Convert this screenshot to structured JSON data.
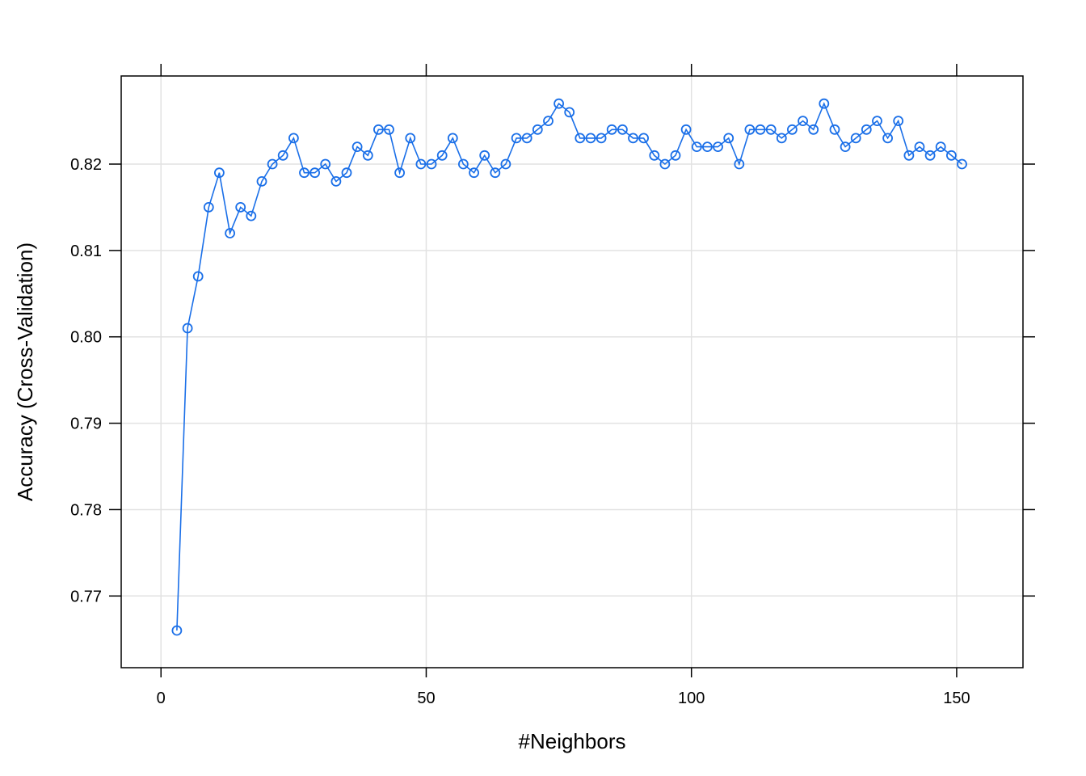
{
  "chart_data": {
    "type": "line",
    "title": "",
    "xlabel": "#Neighbors",
    "ylabel": "Accuracy (Cross-Validation)",
    "xlim": [
      -7.5,
      162.5
    ],
    "ylim": [
      0.7617,
      0.8302
    ],
    "x_ticks": [
      0,
      50,
      100,
      150
    ],
    "x_tick_labels": [
      "0",
      "50",
      "100",
      "150"
    ],
    "y_ticks": [
      0.77,
      0.78,
      0.79,
      0.8,
      0.81,
      0.82
    ],
    "y_tick_labels": [
      "0.77",
      "0.78",
      "0.79",
      "0.80",
      "0.81",
      "0.82"
    ],
    "grid": true,
    "marker": "open-circle",
    "series_color": "#1a6fe8",
    "grid_color": "#e2e2e2",
    "x": [
      3,
      5,
      7,
      9,
      11,
      13,
      15,
      17,
      19,
      21,
      23,
      25,
      27,
      29,
      31,
      33,
      35,
      37,
      39,
      41,
      43,
      45,
      47,
      49,
      51,
      53,
      55,
      57,
      59,
      61,
      63,
      65,
      67,
      69,
      71,
      73,
      75,
      77,
      79,
      81,
      83,
      85,
      87,
      89,
      91,
      93,
      95,
      97,
      99,
      101,
      103,
      105,
      107,
      109,
      111,
      113,
      115,
      117,
      119,
      121,
      123,
      125,
      127,
      129,
      131,
      133,
      135,
      137,
      139,
      141,
      143,
      145,
      147,
      149,
      151
    ],
    "y": [
      0.766,
      0.801,
      0.807,
      0.815,
      0.819,
      0.812,
      0.815,
      0.814,
      0.818,
      0.82,
      0.821,
      0.823,
      0.819,
      0.819,
      0.82,
      0.818,
      0.819,
      0.822,
      0.821,
      0.824,
      0.824,
      0.819,
      0.823,
      0.82,
      0.82,
      0.821,
      0.823,
      0.82,
      0.819,
      0.821,
      0.819,
      0.82,
      0.823,
      0.823,
      0.824,
      0.825,
      0.827,
      0.826,
      0.823,
      0.823,
      0.823,
      0.824,
      0.824,
      0.823,
      0.823,
      0.821,
      0.82,
      0.821,
      0.824,
      0.822,
      0.822,
      0.822,
      0.823,
      0.82,
      0.824,
      0.824,
      0.824,
      0.823,
      0.824,
      0.825,
      0.824,
      0.827,
      0.824,
      0.822,
      0.823,
      0.824,
      0.825,
      0.823,
      0.825,
      0.821,
      0.822,
      0.821,
      0.822,
      0.821,
      0.82
    ]
  }
}
